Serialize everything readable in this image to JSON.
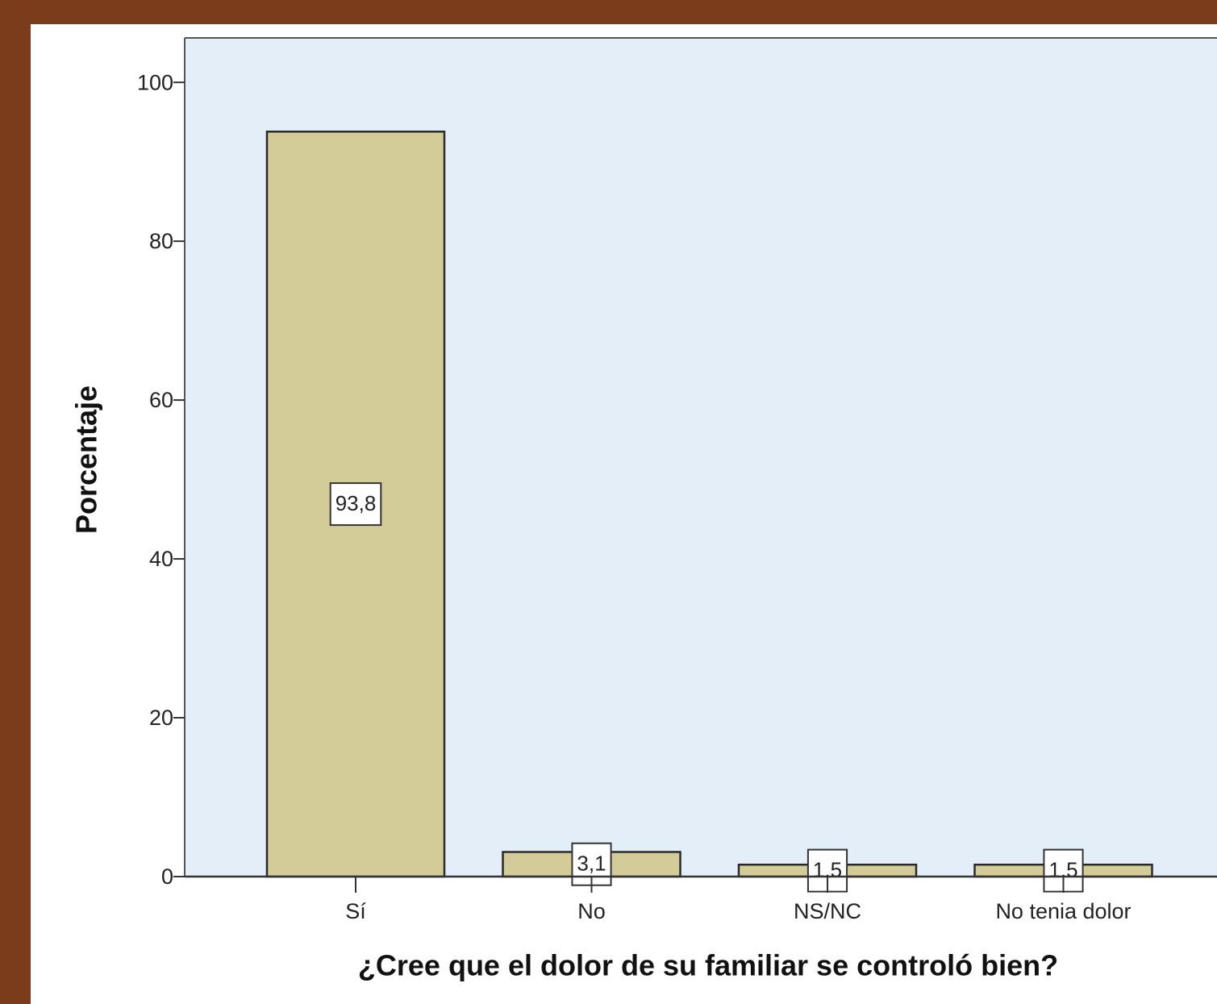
{
  "chart_data": {
    "type": "bar",
    "x_label": "¿Cree que el dolor de su familiar se controló bien?",
    "y_label": "Porcentaje",
    "categories": [
      "Sí",
      "No",
      "NS/NC",
      "No tenia dolor"
    ],
    "values": [
      93.8,
      3.1,
      1.5,
      1.5
    ],
    "value_labels": [
      "93,8",
      "3,1",
      "1,5",
      "1,5"
    ],
    "color": "#d3cc98",
    "ylim": [
      0,
      105.6
    ],
    "yticks": [
      0,
      20,
      40,
      60,
      80,
      100
    ]
  }
}
